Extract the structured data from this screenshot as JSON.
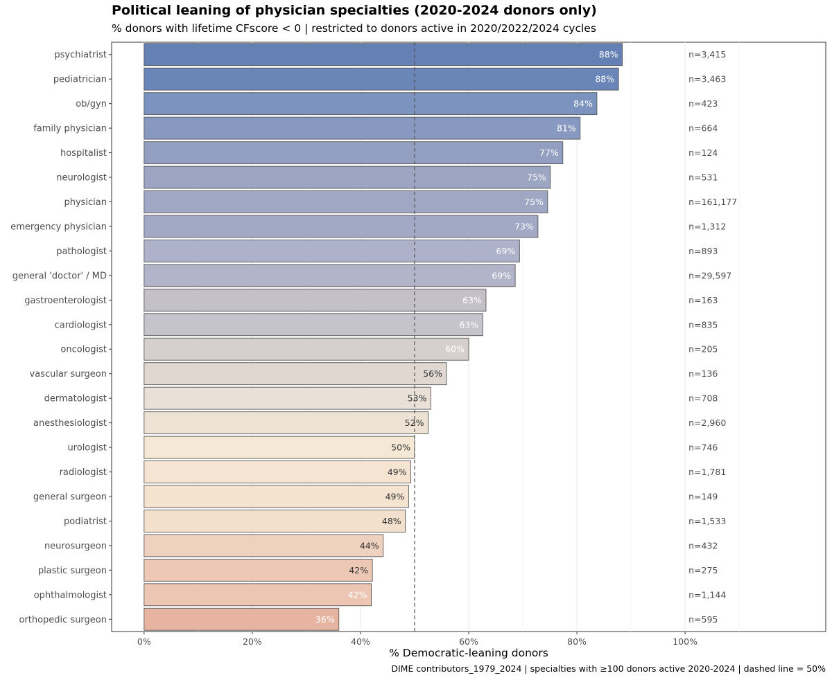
{
  "chart_data": {
    "type": "bar",
    "orientation": "horizontal",
    "title": "Political leaning of physician specialties (2020-2024 donors only)",
    "subtitle": "% donors with lifetime CFscore < 0 | restricted to donors active in 2020/2022/2024 cycles",
    "xlabel": "% Democratic-leaning donors",
    "caption": "DIME contributors_1979_2024 | specialties with ≥100 donors active 2020-2024 | dashed line = 50%",
    "xlim": [
      -6,
      126
    ],
    "xticks": [
      0,
      20,
      40,
      60,
      80,
      100
    ],
    "xtick_labels": [
      "0%",
      "20%",
      "40%",
      "60%",
      "80%",
      "100%"
    ],
    "reference_line": 50,
    "grid": true,
    "categories": [
      "psychiatrist",
      "pediatrician",
      "ob/gyn",
      "family physician",
      "hospitalist",
      "neurologist",
      "physician",
      "emergency physician",
      "pathologist",
      "general 'doctor' / MD",
      "gastroenterologist",
      "cardiologist",
      "oncologist",
      "vascular surgeon",
      "dermatologist",
      "anesthesiologist",
      "urologist",
      "radiologist",
      "general surgeon",
      "podiatrist",
      "neurosurgeon",
      "plastic surgeon",
      "ophthalmologist",
      "orthopedic surgeon"
    ],
    "values": [
      88.4,
      87.7,
      83.7,
      80.6,
      77.4,
      75.1,
      74.6,
      72.8,
      69.4,
      68.6,
      63.2,
      62.6,
      60.0,
      55.9,
      53.0,
      52.5,
      50.0,
      49.3,
      48.9,
      48.3,
      44.2,
      42.2,
      42.0,
      36.0
    ],
    "value_labels": [
      "88%",
      "88%",
      "84%",
      "81%",
      "77%",
      "75%",
      "75%",
      "73%",
      "69%",
      "69%",
      "63%",
      "63%",
      "60%",
      "56%",
      "53%",
      "52%",
      "50%",
      "49%",
      "49%",
      "48%",
      "44%",
      "42%",
      "42%",
      "36%"
    ],
    "n_labels": [
      "n=3,415",
      "n=3,463",
      "n=423",
      "n=664",
      "n=124",
      "n=531",
      "n=161,177",
      "n=1,312",
      "n=893",
      "n=29,597",
      "n=163",
      "n=835",
      "n=205",
      "n=136",
      "n=708",
      "n=2,960",
      "n=746",
      "n=1,781",
      "n=149",
      "n=1,533",
      "n=432",
      "n=275",
      "n=1,144",
      "n=595"
    ],
    "n_label_position": 100,
    "colors": [
      "#6580b5",
      "#6a85b7",
      "#7c93c0",
      "#8799c1",
      "#939fc0",
      "#9ca5c2",
      "#9ea8c4",
      "#a2a9c4",
      "#adb1c9",
      "#b2b4ca",
      "#c3c0c8",
      "#c5c3cb",
      "#d5cfce",
      "#e0d7d1",
      "#e9e0d7",
      "#ede2d3",
      "#f5e8d4",
      "#f5e4d1",
      "#f4e3cf",
      "#f3e0cc",
      "#eed1be",
      "#edc8b6",
      "#edc5b3",
      "#e6b4a1"
    ],
    "label_colors": [
      "#ffffff",
      "#ffffff",
      "#ffffff",
      "#ffffff",
      "#ffffff",
      "#ffffff",
      "#ffffff",
      "#ffffff",
      "#ffffff",
      "#ffffff",
      "#ffffff",
      "#ffffff",
      "#ffffff",
      "#333333",
      "#333333",
      "#333333",
      "#333333",
      "#333333",
      "#333333",
      "#333333",
      "#333333",
      "#333333",
      "#ffffff",
      "#ffffff"
    ]
  }
}
